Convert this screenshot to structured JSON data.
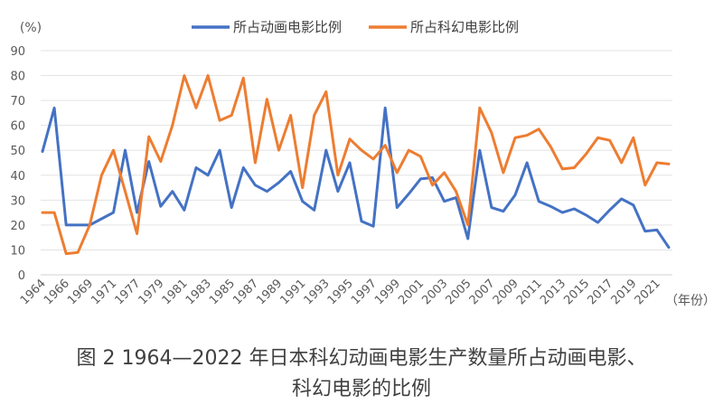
{
  "caption": {
    "line1": "图 2  1964—2022 年日本科幻动画电影生产数量所占动画电影、",
    "line2": "科幻电影的比例"
  },
  "chart_data": {
    "type": "line",
    "title": "",
    "ylabel": "(%)",
    "xlabel": "（年份）",
    "ylim": [
      0,
      90
    ],
    "yticks": [
      0,
      10,
      20,
      30,
      40,
      50,
      60,
      70,
      80,
      90
    ],
    "grid": true,
    "legend_position": "top-center",
    "x": [
      "1964",
      "1965",
      "1966",
      "1967",
      "1969",
      "1970",
      "1971",
      "1972",
      "1977",
      "1978",
      "1979",
      "1980",
      "1981",
      "1982",
      "1983",
      "1984",
      "1985",
      "1986",
      "1987",
      "1988",
      "1989",
      "1990",
      "1991",
      "1992",
      "1993",
      "1994",
      "1995",
      "1996",
      "1997",
      "1998",
      "1999",
      "2000",
      "2001",
      "2002",
      "2003",
      "2004",
      "2005",
      "2006",
      "2007",
      "2008",
      "2009",
      "2010",
      "2011",
      "2012",
      "2013",
      "2014",
      "2015",
      "2016",
      "2017",
      "2018",
      "2019",
      "2020",
      "2021",
      "2022"
    ],
    "tick_labels": [
      "1964",
      "1966",
      "1969",
      "1971",
      "1977",
      "1979",
      "1981",
      "1983",
      "1985",
      "1987",
      "1989",
      "1991",
      "1993",
      "1995",
      "1997",
      "1999",
      "2001",
      "2003",
      "2005",
      "2007",
      "2009",
      "2011",
      "2013",
      "2015",
      "2017",
      "2019",
      "2021"
    ],
    "series": [
      {
        "name": "所占动画电影比例",
        "color": "#4472C4",
        "values": [
          49.5,
          67,
          20,
          20,
          20,
          22.5,
          25,
          50,
          25,
          45.5,
          27.5,
          33.5,
          26,
          43,
          40,
          50,
          27,
          43,
          36,
          33.5,
          37,
          41.5,
          29.5,
          26,
          50,
          33.5,
          45,
          21.5,
          19.5,
          67,
          27,
          32.5,
          38.5,
          39,
          29.5,
          31,
          14.5,
          50,
          27,
          25.5,
          32,
          45,
          29.5,
          27.5,
          25,
          26.5,
          24,
          21,
          26,
          30.5,
          28,
          17.5,
          18,
          11
        ]
      },
      {
        "name": "所占科幻电影比例",
        "color": "#ED7D31",
        "values": [
          25,
          25,
          8.5,
          9,
          20,
          40,
          50,
          33.5,
          16.5,
          55.5,
          45.5,
          60,
          80,
          67,
          80,
          62,
          64,
          79,
          45,
          70.5,
          50,
          64,
          35,
          64,
          73.5,
          40,
          54.5,
          50,
          46.5,
          52,
          41,
          50,
          47.5,
          36,
          41,
          33.5,
          20,
          67,
          57,
          41,
          55,
          56,
          58.5,
          51.5,
          42.5,
          43,
          48.5,
          55,
          54,
          45,
          55,
          36,
          45,
          44.5
        ]
      }
    ]
  }
}
